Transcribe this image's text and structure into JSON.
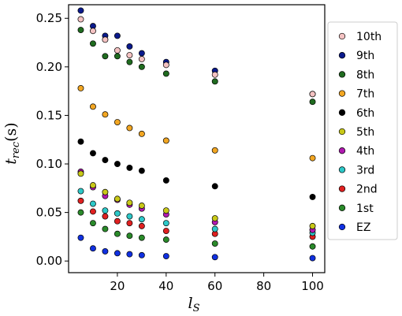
{
  "chart_data": {
    "type": "scatter",
    "title": "",
    "xlabel": "l_S",
    "ylabel": "t_rec(s)",
    "xlim": [
      0,
      105
    ],
    "ylim": [
      -0.012,
      0.264
    ],
    "xticks": [
      20,
      40,
      60,
      80,
      100
    ],
    "yticks": [
      0.0,
      0.05,
      0.1,
      0.15,
      0.2,
      0.25
    ],
    "xtick_labels": [
      "20",
      "40",
      "60",
      "80",
      "100"
    ],
    "ytick_labels": [
      "0.00",
      "0.05",
      "0.10",
      "0.15",
      "0.20",
      "0.25"
    ],
    "grid": false,
    "legend_position": "outside-right",
    "x": [
      5,
      10,
      15,
      20,
      25,
      30,
      40,
      60,
      100
    ],
    "series": [
      {
        "name": "10th",
        "color": "#f4c2c2",
        "values": [
          0.249,
          0.237,
          0.228,
          0.217,
          0.212,
          0.208,
          0.202,
          0.192,
          0.172
        ]
      },
      {
        "name": "9th",
        "color": "#0a1a8c",
        "values": [
          0.258,
          0.242,
          0.232,
          0.232,
          0.221,
          0.214,
          0.205,
          0.196,
          0.172
        ]
      },
      {
        "name": "8th",
        "color": "#1f6b1f",
        "values": [
          0.238,
          0.224,
          0.211,
          0.211,
          0.205,
          0.2,
          0.193,
          0.185,
          0.164
        ]
      },
      {
        "name": "7th",
        "color": "#f2a622",
        "values": [
          0.178,
          0.159,
          0.151,
          0.143,
          0.137,
          0.131,
          0.124,
          0.114,
          0.106
        ]
      },
      {
        "name": "6th",
        "color": "#000000",
        "values": [
          0.123,
          0.111,
          0.104,
          0.1,
          0.096,
          0.093,
          0.083,
          0.077,
          0.066
        ]
      },
      {
        "name": "5th",
        "color": "#c8c818",
        "values": [
          0.09,
          0.078,
          0.071,
          0.064,
          0.06,
          0.057,
          0.052,
          0.044,
          0.036
        ]
      },
      {
        "name": "4th",
        "color": "#b01ab0",
        "values": [
          0.092,
          0.076,
          0.067,
          0.063,
          0.058,
          0.054,
          0.048,
          0.04,
          0.032
        ]
      },
      {
        "name": "3rd",
        "color": "#2cc8c8",
        "values": [
          0.072,
          0.059,
          0.052,
          0.049,
          0.046,
          0.043,
          0.039,
          0.033,
          0.029
        ]
      },
      {
        "name": "2nd",
        "color": "#e02020",
        "values": [
          0.062,
          0.051,
          0.046,
          0.041,
          0.039,
          0.036,
          0.031,
          0.028,
          0.025
        ]
      },
      {
        "name": "1st",
        "color": "#2a8a2a",
        "values": [
          0.05,
          0.039,
          0.033,
          0.028,
          0.026,
          0.024,
          0.022,
          0.018,
          0.015
        ]
      },
      {
        "name": "EZ",
        "color": "#1030e0",
        "values": [
          0.024,
          0.013,
          0.01,
          0.008,
          0.007,
          0.006,
          0.005,
          0.004,
          0.003
        ]
      }
    ]
  }
}
